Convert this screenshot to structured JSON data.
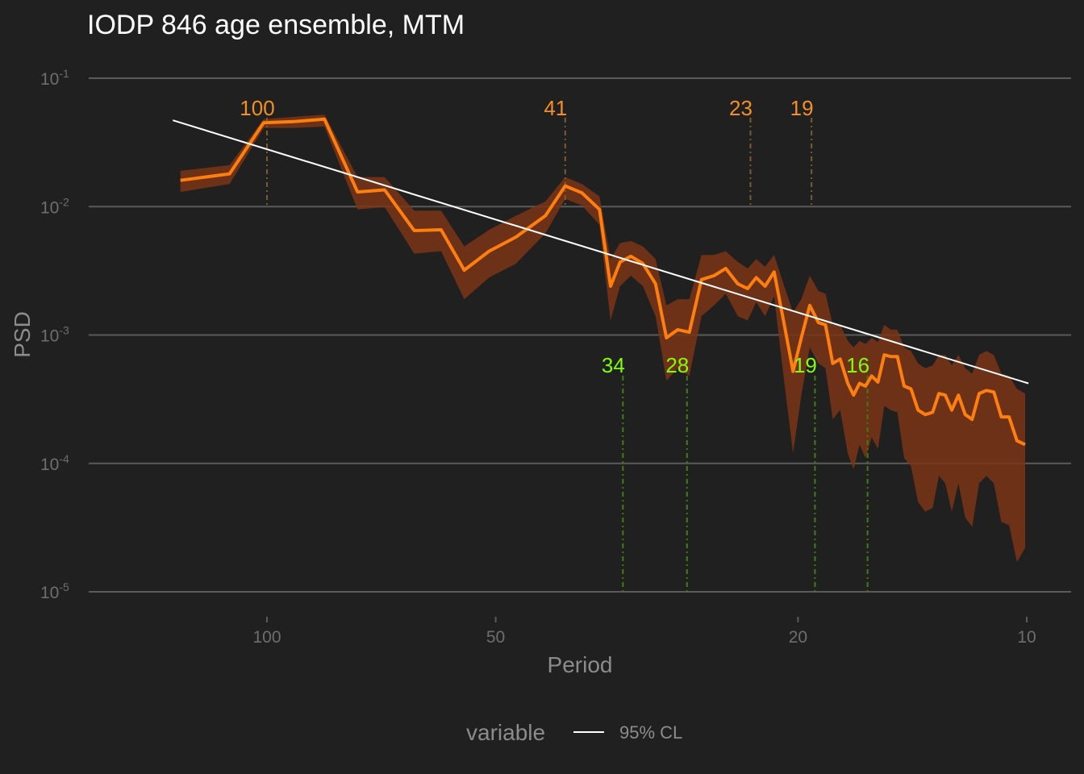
{
  "chart_data": {
    "type": "line",
    "title": "IODP 846 age ensemble, MTM",
    "xlabel": "Period",
    "ylabel": "PSD",
    "x_scale": "log-reversed",
    "y_scale": "log",
    "xlim": [
      150,
      9.5
    ],
    "ylim": [
      1e-05,
      0.1
    ],
    "x_ticks": [
      {
        "value": 100,
        "label": "100"
      },
      {
        "value": 50,
        "label": "50"
      },
      {
        "value": 20,
        "label": "20"
      },
      {
        "value": 10,
        "label": "10"
      }
    ],
    "y_ticks": [
      {
        "value": 0.1,
        "base": "10",
        "exp": "-1"
      },
      {
        "value": 0.01,
        "base": "10",
        "exp": "-2"
      },
      {
        "value": 0.001,
        "base": "10",
        "exp": "-3"
      },
      {
        "value": 0.0001,
        "base": "10",
        "exp": "-4"
      },
      {
        "value": 1e-05,
        "base": "10",
        "exp": "-5"
      }
    ],
    "grid": "horizontal major lines",
    "colors": {
      "background": "#202020",
      "grid": "#5a5a5a",
      "series": "#ff7f0e",
      "band": "#7a3515",
      "cl_line": "#ffffff",
      "orange_peaks": "#f5901e",
      "green_peaks": "#7fff00",
      "orange_dash": "#7d5a2a",
      "green_dash": "#3f7d18"
    },
    "series": [
      {
        "period": [
          130,
          112,
          101,
          92,
          84,
          76,
          70,
          64,
          59,
          55,
          51,
          47,
          43,
          40.5,
          38.5,
          36.5,
          35.3,
          34.3,
          33.2,
          32,
          30.8,
          29.8,
          28.8,
          27.8,
          26.8,
          25.8,
          24.9,
          24,
          23.3,
          22.7,
          22.1,
          21.5,
          20.9,
          20.3,
          19.8,
          19.3,
          18.8,
          18.4,
          18,
          17.6,
          17.2,
          16.9,
          16.6,
          16.3,
          16,
          15.7,
          15.4,
          15.1,
          14.8,
          14.5,
          14.2,
          13.9,
          13.6,
          13.3,
          13.05,
          12.8,
          12.55,
          12.3,
          12.05,
          11.8,
          11.55,
          11.3,
          11.05,
          10.8,
          10.55,
          10.3,
          10.05
        ],
        "psd": [
          0.016,
          0.018,
          0.045,
          0.046,
          0.048,
          0.013,
          0.0135,
          0.0065,
          0.0066,
          0.0032,
          0.0045,
          0.0058,
          0.0085,
          0.0145,
          0.0128,
          0.0095,
          0.0024,
          0.0037,
          0.0041,
          0.0036,
          0.0025,
          0.00095,
          0.0011,
          0.00105,
          0.0027,
          0.0029,
          0.0033,
          0.0025,
          0.0023,
          0.0028,
          0.0024,
          0.0031,
          0.0013,
          0.00052,
          0.00095,
          0.0017,
          0.00125,
          0.0012,
          0.0006,
          0.00065,
          0.00042,
          0.00034,
          0.00042,
          0.0004,
          0.00048,
          0.00043,
          0.0007,
          0.00068,
          0.00068,
          0.0004,
          0.00038,
          0.00026,
          0.00024,
          0.00025,
          0.00035,
          0.00034,
          0.00026,
          0.00034,
          0.00024,
          0.00022,
          0.00035,
          0.00037,
          0.00036,
          0.00023,
          0.00023,
          0.00015,
          0.00014
        ],
        "lower": [
          0.013,
          0.015,
          0.041,
          0.041,
          0.042,
          0.0095,
          0.0099,
          0.0043,
          0.0045,
          0.0019,
          0.0028,
          0.0036,
          0.0062,
          0.0115,
          0.0102,
          0.0072,
          0.0013,
          0.0024,
          0.0029,
          0.0024,
          0.0014,
          0.00044,
          0.00055,
          0.00048,
          0.0014,
          0.0017,
          0.0021,
          0.0014,
          0.0013,
          0.0018,
          0.0014,
          0.002,
          0.00048,
          0.00012,
          0.00034,
          0.0008,
          0.0006,
          0.00055,
          0.00022,
          0.00026,
          0.00012,
          9e-05,
          0.00014,
          0.00011,
          0.00016,
          0.00013,
          0.00028,
          0.00026,
          0.00025,
          0.00011,
          9.5e-05,
          5e-05,
          4.2e-05,
          4.5e-05,
          8e-05,
          7e-05,
          4.2e-05,
          7e-05,
          3.8e-05,
          3.2e-05,
          7e-05,
          8e-05,
          7e-05,
          3.5e-05,
          3.3e-05,
          1.7e-05,
          2.2e-05
        ],
        "upper": [
          0.019,
          0.021,
          0.048,
          0.05,
          0.052,
          0.017,
          0.017,
          0.0093,
          0.0093,
          0.0049,
          0.0066,
          0.0085,
          0.011,
          0.017,
          0.015,
          0.012,
          0.0039,
          0.0052,
          0.0054,
          0.0049,
          0.0039,
          0.0017,
          0.0019,
          0.0019,
          0.0042,
          0.0042,
          0.0045,
          0.0037,
          0.0033,
          0.0039,
          0.0034,
          0.0042,
          0.0025,
          0.0015,
          0.0019,
          0.0029,
          0.0022,
          0.0021,
          0.0012,
          0.0012,
          0.0009,
          0.0008,
          0.0009,
          0.00085,
          0.00095,
          0.00088,
          0.0012,
          0.0011,
          0.0011,
          0.0008,
          0.00075,
          0.0006,
          0.00055,
          0.00058,
          0.0007,
          0.0007,
          0.00058,
          0.0007,
          0.00055,
          0.0005,
          0.0007,
          0.00075,
          0.0007,
          0.0005,
          0.00048,
          0.00038,
          0.00035
        ]
      }
    ],
    "cl_line": {
      "name": "95% CL",
      "period": [
        133,
        9.95
      ],
      "psd": [
        0.047,
        0.00042
      ]
    },
    "peaks_above": [
      {
        "label": "100",
        "period": 100
      },
      {
        "label": "41",
        "period": 40.5
      },
      {
        "label": "23",
        "period": 23.1
      },
      {
        "label": "19",
        "period": 19.2
      }
    ],
    "peaks_below": [
      {
        "label": "34",
        "period": 34
      },
      {
        "label": "28",
        "period": 28
      },
      {
        "label": "19",
        "period": 19.0
      },
      {
        "label": "16",
        "period": 16.2
      }
    ],
    "legend": {
      "title": "variable",
      "label": "95% CL",
      "position": "bottom"
    }
  }
}
